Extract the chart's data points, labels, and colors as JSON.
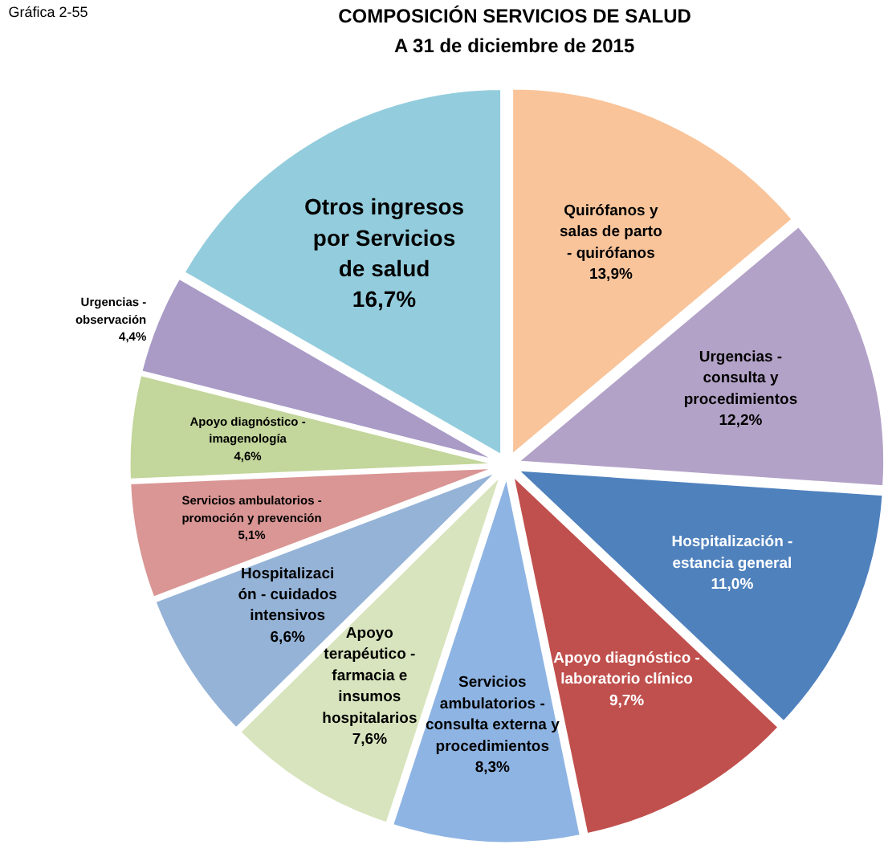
{
  "chart_data": {
    "type": "pie",
    "title": "COMPOSICIÓN SERVICIOS DE SALUD",
    "subtitle": "A 31 de diciembre de 2015",
    "annotations": [
      "Gráfica 2-55"
    ],
    "categories": [
      "Quirófanos y\nsalas de parto\n- quirófanos",
      "Urgencias -\nconsulta y\nprocedimientos",
      "Hospitalización -\nestancia general",
      "Apoyo diagnóstico -\nlaboratorio clínico",
      "Servicios\nambulatorios -\nconsulta externa y\nprocedimientos",
      "Apoyo\nterapéutico -\nfarmacia e\ninsumos\nhospitalarios",
      "Hospitalizaci\nón - cuidados\nintensivos",
      "Servicios ambulatorios -\npromoción y prevención",
      "Apoyo diagnóstico -\nimagenología",
      "Urgencias -\nobservación",
      "Otros ingresos\npor Servicios\nde salud"
    ],
    "values": [
      13.9,
      12.2,
      11.0,
      9.7,
      8.3,
      7.6,
      6.6,
      5.1,
      4.6,
      4.4,
      16.7
    ],
    "value_labels": [
      "13,9%",
      "12,2%",
      "11,0%",
      "9,7%",
      "8,3%",
      "7,6%",
      "6,6%",
      "5,1%",
      "4,6%",
      "4,4%",
      "16,7%"
    ],
    "colors": [
      "#f9c49a",
      "#b3a2c7",
      "#4f81bd",
      "#c0504d",
      "#8eb4e3",
      "#d7e4bd",
      "#95b3d7",
      "#d99694",
      "#c3d69b",
      "#a99bc6",
      "#93cddd"
    ]
  }
}
